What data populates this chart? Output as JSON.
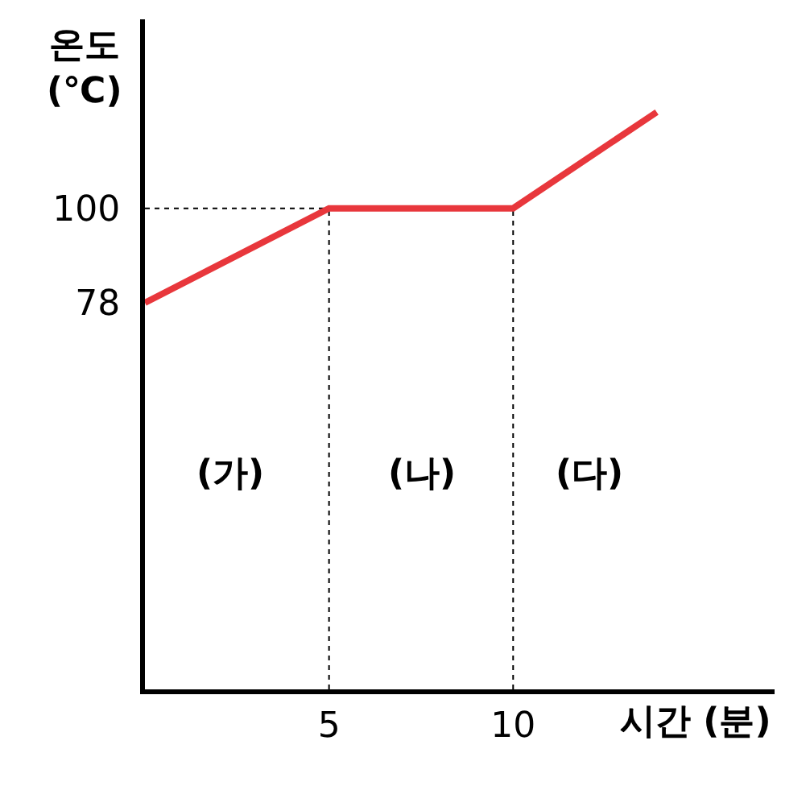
{
  "chart_data": {
    "type": "line",
    "xlabel": "시간 (분)",
    "ylabel": "온도\n(℃)",
    "x": [
      0,
      5,
      10,
      13.9
    ],
    "series": [
      {
        "color": "#e8373c",
        "values": [
          78,
          100,
          100,
          122.4
        ]
      }
    ],
    "xlim": [
      0,
      17.1
    ],
    "ylim": [
      -12,
      144
    ],
    "xticks": [
      5,
      10
    ],
    "yticks": [
      78,
      100
    ],
    "ref_lines": [
      {
        "axis": "x",
        "value": 5,
        "line_style": "dotted",
        "color": "#000000"
      },
      {
        "axis": "x",
        "value": 10,
        "line_style": "dotted",
        "color": "#000000"
      },
      {
        "axis": "y",
        "value": 100,
        "line_style": "dotted",
        "color": "#000000"
      }
    ],
    "annotations": [
      "(가)",
      "(나)",
      "(다)"
    ],
    "grid": false,
    "marker": "none",
    "line_style": "solid"
  }
}
